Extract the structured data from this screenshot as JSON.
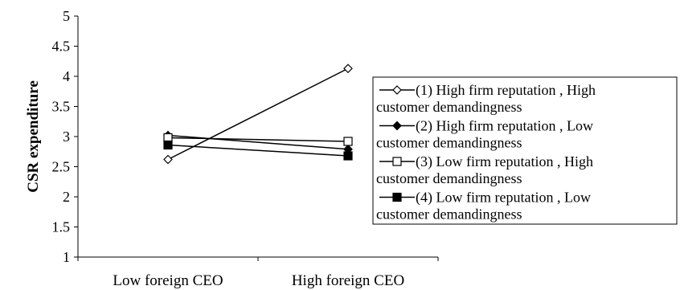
{
  "chart_data": {
    "type": "line",
    "title": "",
    "xlabel": "",
    "ylabel": "CSR expenditure",
    "ylim": [
      1,
      5
    ],
    "yticks": [
      "1",
      "1.5",
      "2",
      "2.5",
      "3",
      "3.5",
      "4",
      "4.5",
      "5"
    ],
    "categories": [
      "Low foreign CEO",
      "High foreign CEO"
    ],
    "grid": false,
    "legend_position": "right",
    "series": [
      {
        "name_line1": "(1) High firm reputation , High",
        "name_line2": "customer demandingness",
        "values": [
          2.62,
          4.13
        ],
        "marker": "open-diamond",
        "color": "#000000"
      },
      {
        "name_line1": "(2) High firm reputation , Low",
        "name_line2": "customer demandingness",
        "values": [
          3.02,
          2.79
        ],
        "marker": "filled-diamond",
        "color": "#000000"
      },
      {
        "name_line1": "(3) Low firm reputation , High",
        "name_line2": "customer demandingness",
        "values": [
          2.98,
          2.92
        ],
        "marker": "open-square",
        "color": "#000000"
      },
      {
        "name_line1": "(4) Low firm reputation , Low",
        "name_line2": "customer demandingness",
        "values": [
          2.86,
          2.68
        ],
        "marker": "filled-square",
        "color": "#000000"
      }
    ]
  }
}
